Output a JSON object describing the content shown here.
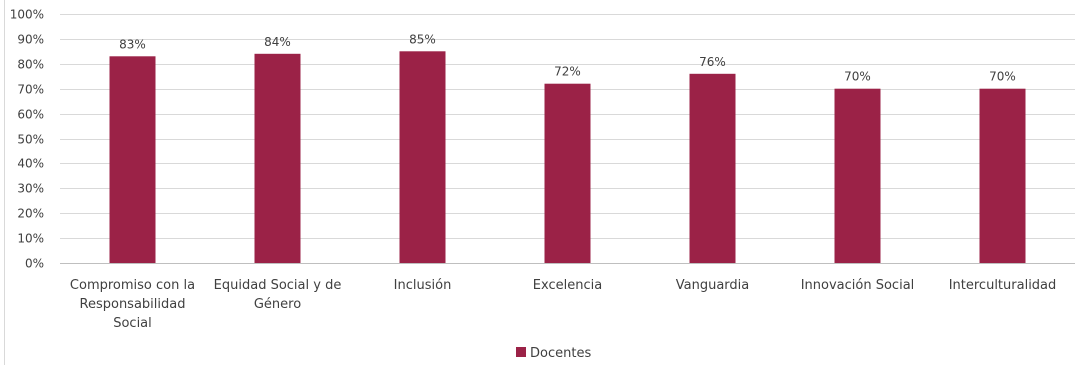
{
  "chart_data": {
    "type": "bar",
    "categories": [
      [
        "Compromiso con la",
        "Responsabilidad",
        "Social"
      ],
      [
        "Equidad Social y de",
        "Género"
      ],
      [
        "Inclusión"
      ],
      [
        "Excelencia"
      ],
      [
        "Vanguardia"
      ],
      [
        "Innovación Social"
      ],
      [
        "Interculturalidad"
      ]
    ],
    "series": [
      {
        "name": "Docentes",
        "values": [
          83,
          84,
          85,
          72,
          76,
          70,
          70
        ],
        "data_labels": [
          "83%",
          "84%",
          "85%",
          "72%",
          "76%",
          "70%",
          "70%"
        ],
        "color": "#9b2247"
      }
    ],
    "yticks": [
      "0%",
      "10%",
      "20%",
      "30%",
      "40%",
      "50%",
      "60%",
      "70%",
      "80%",
      "90%",
      "100%"
    ],
    "ylim": [
      0,
      100
    ],
    "grid": true,
    "legend_position": "bottom",
    "colors": {
      "bar": "#9b2247",
      "grid": "#d9d9d9",
      "text": "#404040"
    }
  }
}
